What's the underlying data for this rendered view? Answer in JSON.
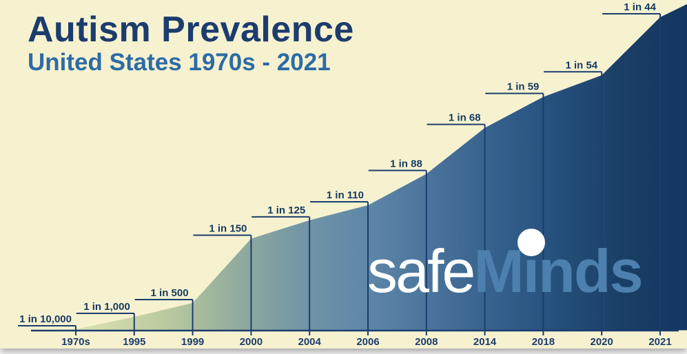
{
  "title": "Autism Prevalence",
  "subtitle": "United States 1970s - 2021",
  "logo": {
    "safe": "safe",
    "minds": "Minds"
  },
  "chart_data": {
    "type": "area",
    "title": "Autism Prevalence",
    "subtitle": "United States 1970s - 2021",
    "categories": [
      "1970s",
      "1995",
      "1999",
      "2000",
      "2004",
      "2006",
      "2008",
      "2014",
      "2018",
      "2020",
      "2021"
    ],
    "labels": [
      "1 in 10,000",
      "1 in 1,000",
      "1 in 500",
      "1 in 150",
      "1 in 125",
      "1 in 110",
      "1 in 88",
      "1 in 68",
      "1 in 59",
      "1 in 54",
      "1 in 44"
    ],
    "values_one_in": [
      10000,
      1000,
      500,
      150,
      125,
      110,
      88,
      68,
      59,
      54,
      44
    ],
    "prevalence": [
      0.0001,
      0.001,
      0.002,
      0.00667,
      0.008,
      0.00909,
      0.01136,
      0.01471,
      0.01695,
      0.01852,
      0.02273
    ],
    "ylim": [
      0,
      0.02273
    ],
    "grid": false,
    "legend": false,
    "xlabel": "",
    "ylabel": "",
    "colors": {
      "background": "#f6f2d0",
      "title": "#1c3c6e",
      "subtitle": "#2d6ba6",
      "axis": "#1c3c6e",
      "label": "#16395f",
      "logo_safe": "#ffffff",
      "logo_minds": "#4d80ae",
      "gradient": [
        "#e6e8c2",
        "#d4dcab",
        "#b9c9a0",
        "#94ad9d",
        "#7497a6",
        "#5f88a8",
        "#4b749c",
        "#36618e",
        "#254f7c",
        "#1a3f66",
        "#143761"
      ]
    }
  }
}
